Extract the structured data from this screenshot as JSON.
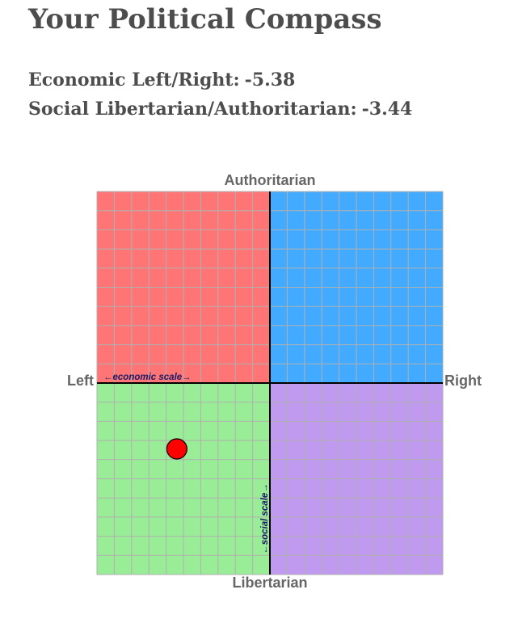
{
  "header": {
    "title": "Your Political Compass"
  },
  "scores": {
    "economic_label": "Economic Left/Right:",
    "economic_value": "-5.38",
    "social_label": "Social Libertarian/Authoritarian:",
    "social_value": "-3.44"
  },
  "chart_data": {
    "type": "scatter",
    "title": "",
    "xlabel": "",
    "ylabel": "",
    "xlim": [
      -10,
      10
    ],
    "ylim": [
      -10,
      10
    ],
    "grid": true,
    "grid_step": 1,
    "axis_labels": {
      "top": "Authoritarian",
      "bottom": "Libertarian",
      "left": "Left",
      "right": "Right"
    },
    "scale_labels": {
      "economic": "←economic scale→",
      "social": "←social scale→"
    },
    "quadrants": [
      {
        "position": "top-left",
        "color": "#ff7575"
      },
      {
        "position": "top-right",
        "color": "#42aaff"
      },
      {
        "position": "bottom-left",
        "color": "#9aed97"
      },
      {
        "position": "bottom-right",
        "color": "#c09aef"
      }
    ],
    "gridline_color": "#b0b0b0",
    "axis_color": "#000000",
    "points": [
      {
        "x": -5.38,
        "y": -3.44,
        "color": "#ff0000"
      }
    ]
  }
}
